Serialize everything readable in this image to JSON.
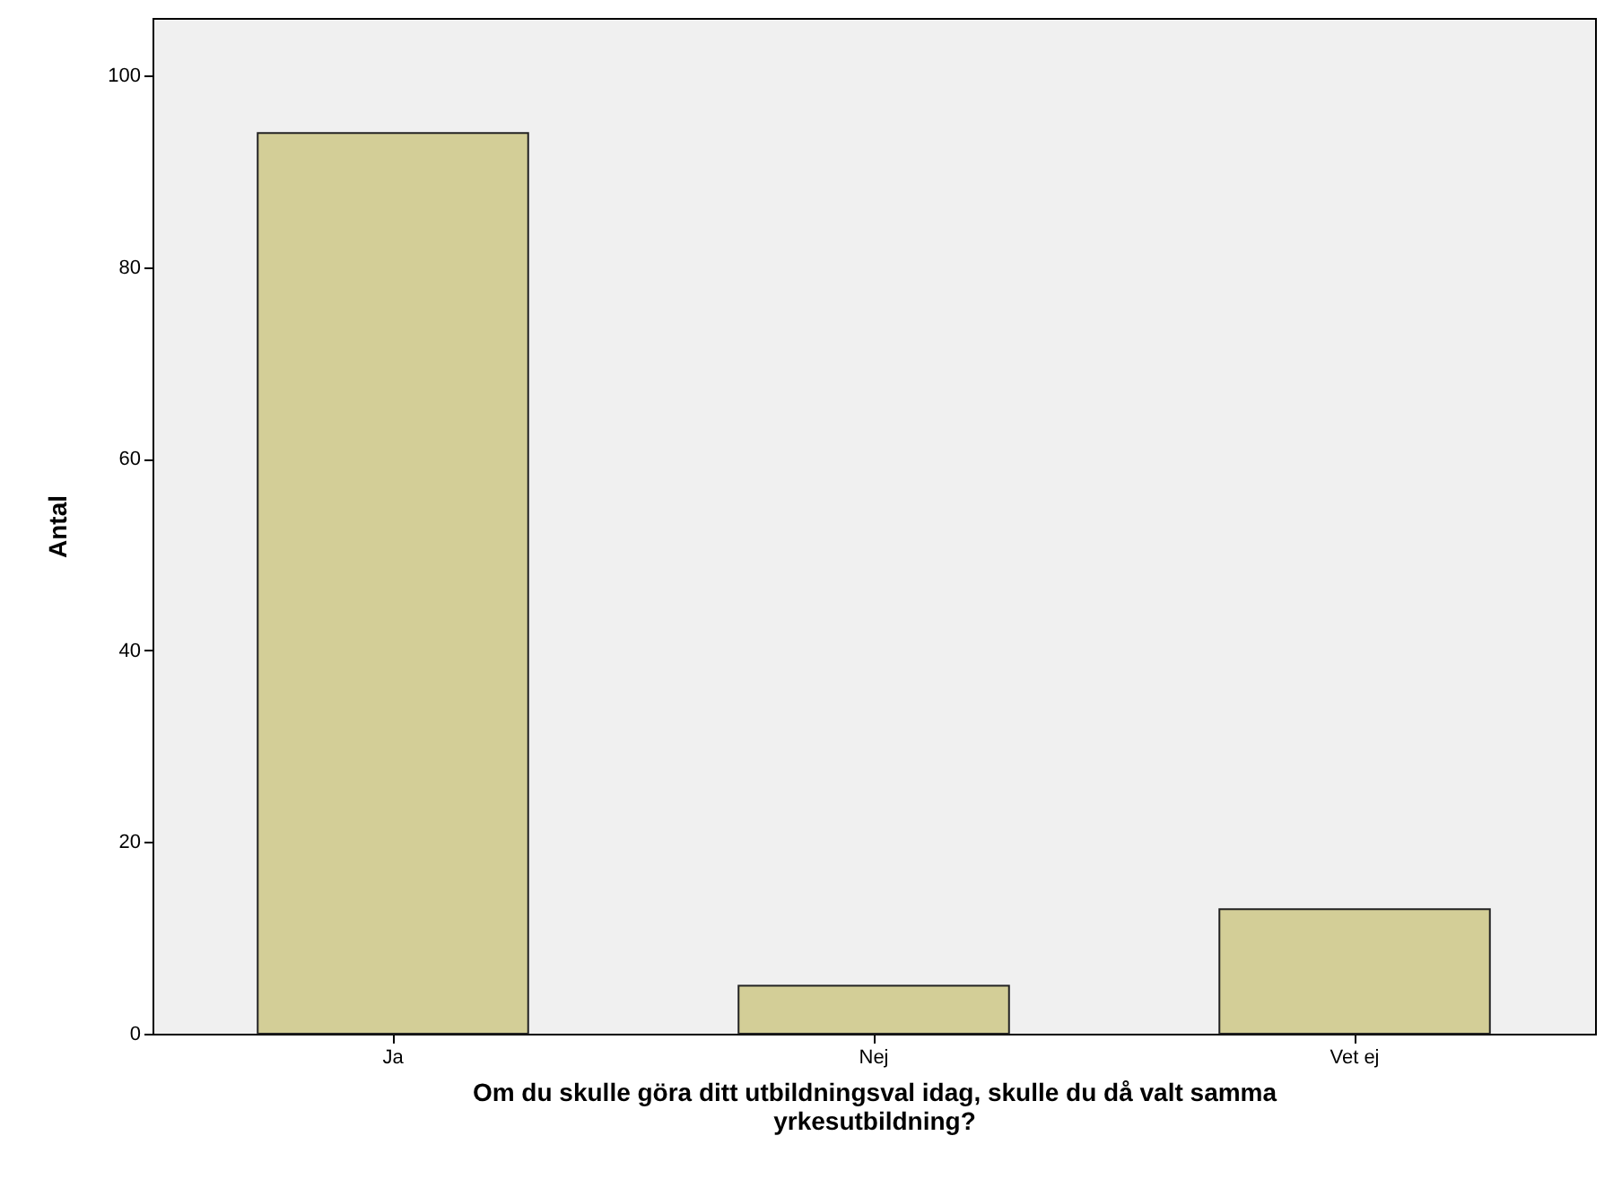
{
  "chart_data": {
    "type": "bar",
    "xlabel": "Om du skulle göra ditt utbildningsval idag, skulle du då valt samma yrkesutbildning?",
    "ylabel": "Antal",
    "categories": [
      "Ja",
      "Nej",
      "Vet ej"
    ],
    "values": [
      94,
      5,
      13
    ],
    "color": "#d3ce97",
    "ylim": [
      0,
      106
    ],
    "yticks": [
      0,
      20,
      40,
      60,
      80,
      100
    ],
    "grid": false
  }
}
